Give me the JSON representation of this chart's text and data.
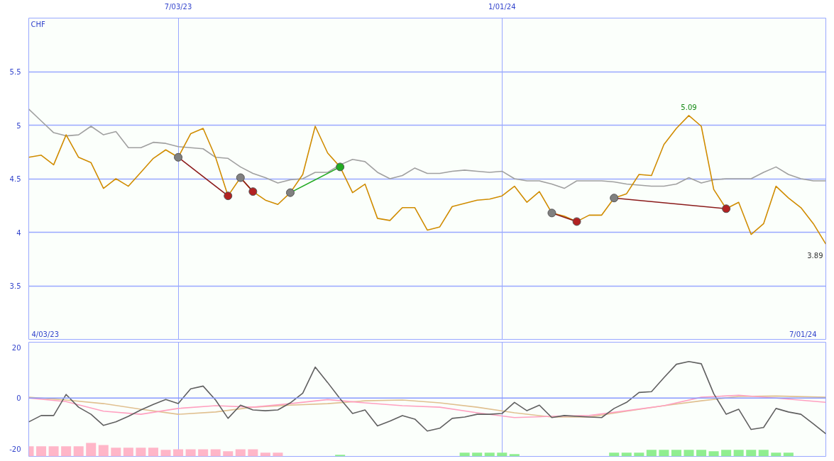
{
  "chart_data": [
    {
      "type": "line",
      "ylabel": "CHF",
      "x": [
        "2023-04-10",
        "2023-04-17",
        "2023-04-24",
        "2023-05-01",
        "2023-05-08",
        "2023-05-15",
        "2023-05-22",
        "2023-05-29",
        "2023-06-05",
        "2023-06-12",
        "2023-06-19",
        "2023-06-26",
        "2023-07-03",
        "2023-07-10",
        "2023-07-17",
        "2023-07-24",
        "2023-07-31",
        "2023-08-07",
        "2023-08-14",
        "2023-08-21",
        "2023-08-28",
        "2023-09-04",
        "2023-09-11",
        "2023-09-18",
        "2023-09-25",
        "2023-10-02",
        "2023-10-09",
        "2023-10-16",
        "2023-10-23",
        "2023-10-30",
        "2023-11-06",
        "2023-11-13",
        "2023-11-20",
        "2023-11-27",
        "2023-12-04",
        "2023-12-11",
        "2023-12-18",
        "2023-12-25",
        "2024-01-01",
        "2024-01-08",
        "2024-01-15",
        "2024-01-22",
        "2024-01-29",
        "2024-02-05",
        "2024-02-12",
        "2024-02-19",
        "2024-02-26",
        "2024-03-04",
        "2024-03-11",
        "2024-03-18",
        "2024-03-25",
        "2024-04-01",
        "2024-04-08",
        "2024-04-15",
        "2024-04-22",
        "2024-04-29",
        "2024-05-06",
        "2024-05-13",
        "2024-05-20",
        "2024-05-27",
        "2024-06-03",
        "2024-06-10",
        "2024-06-17",
        "2024-06-24",
        "2024-07-01"
      ],
      "xlim": [
        "2023-04-10",
        "2024-07-01"
      ],
      "xticks": [
        {
          "value": "2023-07-03",
          "label": "7/03/23"
        },
        {
          "value": "2024-01-01",
          "label": "1/01/24"
        }
      ],
      "ylim": [
        3,
        6
      ],
      "yticks": [
        3.5,
        4,
        4.5,
        5,
        5.5
      ],
      "grid": true,
      "series": [
        {
          "color": "#a0a0a0",
          "values": [
            5.15,
            5.04,
            4.93,
            4.9,
            4.91,
            4.99,
            4.91,
            4.94,
            4.79,
            4.79,
            4.84,
            4.83,
            4.8,
            4.79,
            4.78,
            4.7,
            4.69,
            4.61,
            4.55,
            4.51,
            4.46,
            4.49,
            4.5,
            4.56,
            4.56,
            4.63,
            4.68,
            4.66,
            4.56,
            4.5,
            4.53,
            4.6,
            4.55,
            4.55,
            4.57,
            4.58,
            4.57,
            4.56,
            4.57,
            4.5,
            4.48,
            4.48,
            4.45,
            4.41,
            4.48,
            4.48,
            4.48,
            4.47,
            4.45,
            4.44,
            4.43,
            4.43,
            4.45,
            4.51,
            4.46,
            4.49,
            4.5,
            4.5,
            4.5,
            4.56,
            4.61,
            4.54,
            4.5,
            4.48,
            4.48
          ]
        },
        {
          "color": "#d08c00",
          "values": [
            4.7,
            4.72,
            4.63,
            4.91,
            4.7,
            4.65,
            4.41,
            4.5,
            4.43,
            4.56,
            4.69,
            4.77,
            4.7,
            4.92,
            4.97,
            4.7,
            4.34,
            4.51,
            4.38,
            4.3,
            4.26,
            4.37,
            4.54,
            4.99,
            4.74,
            4.61,
            4.37,
            4.45,
            4.13,
            4.11,
            4.23,
            4.23,
            4.02,
            4.05,
            4.24,
            4.27,
            4.3,
            4.31,
            4.34,
            4.43,
            4.28,
            4.38,
            4.18,
            4.15,
            4.1,
            4.16,
            4.16,
            4.32,
            4.36,
            4.54,
            4.53,
            4.82,
            4.97,
            5.09,
            4.99,
            4.4,
            4.22,
            4.28,
            3.98,
            4.08,
            4.43,
            4.32,
            4.23,
            4.08,
            3.89
          ]
        },
        {
          "color": "#8b1a1a",
          "x": [
            "2023-07-03",
            "2023-07-31"
          ],
          "values": [
            4.7,
            4.34
          ]
        },
        {
          "color": "#8b1a1a",
          "x": [
            "2023-08-07",
            "2023-08-14"
          ],
          "values": [
            4.51,
            4.38
          ]
        },
        {
          "color": "#22aa22",
          "x": [
            "2023-09-04",
            "2023-10-02"
          ],
          "values": [
            4.37,
            4.61
          ]
        },
        {
          "color": "#8b1a1a",
          "x": [
            "2024-01-29",
            "2024-02-12"
          ],
          "values": [
            4.18,
            4.1
          ]
        },
        {
          "color": "#8b1a1a",
          "x": [
            "2024-03-04",
            "2024-05-06"
          ],
          "values": [
            4.32,
            4.22
          ]
        },
        {
          "type": "scatter",
          "marker": "circle",
          "color": "#808080",
          "x": [
            "2023-07-03",
            "2023-08-07",
            "2023-09-04",
            "2024-01-29",
            "2024-03-04"
          ],
          "values": [
            4.7,
            4.51,
            4.37,
            4.18,
            4.32
          ]
        },
        {
          "type": "scatter",
          "marker": "circle",
          "colors": [
            "#b22222",
            "#b22222",
            "#22aa22",
            "#b22222",
            "#b22222"
          ],
          "x": [
            "2023-07-31",
            "2023-08-14",
            "2023-10-02",
            "2024-02-12",
            "2024-05-06"
          ],
          "values": [
            4.34,
            4.38,
            4.61,
            4.1,
            4.22
          ]
        }
      ],
      "annotations": [
        "4/03/23",
        "7/01/24",
        {
          "text": "5.09",
          "x": "2024-04-15",
          "y": 5.09
        },
        {
          "text": "3.89",
          "x": "2024-07-01",
          "y": 3.89
        }
      ]
    },
    {
      "type": "line",
      "x": [
        "2023-04-10",
        "2023-04-17",
        "2023-04-24",
        "2023-05-01",
        "2023-05-08",
        "2023-05-15",
        "2023-05-22",
        "2023-05-29",
        "2023-06-05",
        "2023-06-12",
        "2023-06-19",
        "2023-06-26",
        "2023-07-03",
        "2023-07-10",
        "2023-07-17",
        "2023-07-24",
        "2023-07-31",
        "2023-08-07",
        "2023-08-14",
        "2023-08-21",
        "2023-08-28",
        "2023-09-04",
        "2023-09-11",
        "2023-09-18",
        "2023-09-25",
        "2023-10-02",
        "2023-10-09",
        "2023-10-16",
        "2023-10-23",
        "2023-10-30",
        "2023-11-06",
        "2023-11-13",
        "2023-11-20",
        "2023-11-27",
        "2023-12-04",
        "2023-12-11",
        "2023-12-18",
        "2023-12-25",
        "2024-01-01",
        "2024-01-08",
        "2024-01-15",
        "2024-01-22",
        "2024-01-29",
        "2024-02-05",
        "2024-02-12",
        "2024-02-19",
        "2024-02-26",
        "2024-03-04",
        "2024-03-11",
        "2024-03-18",
        "2024-03-25",
        "2024-04-01",
        "2024-04-08",
        "2024-04-15",
        "2024-04-22",
        "2024-04-29",
        "2024-05-06",
        "2024-05-13",
        "2024-05-20",
        "2024-05-27",
        "2024-06-03",
        "2024-06-10",
        "2024-06-17",
        "2024-06-24",
        "2024-07-01"
      ],
      "xlim": [
        "2023-04-10",
        "2024-07-01"
      ],
      "xticks": [
        {
          "value": "2023-07-03",
          "label": null
        },
        {
          "value": "2024-01-01",
          "label": null
        }
      ],
      "ylim": [
        -23,
        22
      ],
      "yticks": [
        20,
        0,
        -20
      ],
      "grid": "x",
      "tick_labels": "y",
      "ref_lines": [
        {
          "axis": "y",
          "value": 0,
          "color": "#8899ff"
        }
      ],
      "series": [
        {
          "type": "bar",
          "colors": [
            "#ffb6c8",
            "#ffb6c8",
            "#ffb6c8",
            "#ffb6c8",
            "#ffb6c8",
            "#ffb6c8",
            "#ffb6c8",
            "#ffb6c8",
            "#ffb6c8",
            "#ffb6c8",
            "#ffb6c8",
            "#ffb6c8",
            "#ffb6c8",
            "#ffb6c8",
            "#ffb6c8",
            "#ffb6c8",
            "#ffb6c8",
            "#ffb6c8",
            "#ffb6c8",
            "#ffb6c8",
            "#ffb6c8",
            "#ffb6c8",
            "#ffb6c8",
            "#ffb6c8",
            "#ffb6c8",
            "#90ee90",
            "#90ee90",
            "#90ee90",
            "#90ee90",
            "#90ee90",
            "#90ee90",
            "#90ee90",
            "#90ee90",
            "#90ee90",
            "#90ee90",
            "#90ee90",
            "#90ee90",
            "#90ee90",
            "#90ee90",
            "#90ee90",
            "#90ee90",
            "#90ee90",
            "#90ee90",
            "#90ee90",
            "#90ee90",
            "#90ee90",
            "#90ee90",
            "#90ee90",
            "#90ee90",
            "#90ee90",
            "#90ee90",
            "#90ee90",
            "#90ee90",
            "#90ee90",
            "#90ee90",
            "#90ee90",
            "#90ee90",
            "#90ee90",
            "#90ee90",
            "#90ee90",
            "#90ee90",
            "#90ee90",
            "#90ee90",
            "#90ee90",
            "#90ee90"
          ],
          "base": [
            -23,
            -23,
            -23,
            -23,
            -23,
            -23,
            -23,
            -23,
            -23,
            -23,
            -23,
            -23,
            -23,
            -23,
            -23,
            -23,
            -23,
            -23,
            -23,
            -23,
            -23,
            null,
            null,
            null,
            null,
            -23,
            null,
            null,
            null,
            null,
            null,
            null,
            null,
            null,
            null,
            -23,
            -23,
            -23,
            -23,
            -23,
            null,
            null,
            null,
            null,
            null,
            null,
            null,
            -23,
            -23,
            -23,
            -23,
            -23,
            -23,
            -23,
            -23,
            -23,
            -23,
            -23,
            -23,
            -23,
            -23,
            -23,
            null,
            null,
            null
          ],
          "values": [
            4.0,
            4.0,
            4.0,
            4.0,
            4.0,
            5.3,
            4.5,
            3.4,
            3.4,
            3.4,
            3.4,
            2.6,
            2.8,
            2.8,
            2.8,
            2.8,
            2.0,
            2.8,
            2.8,
            1.5,
            1.5,
            null,
            null,
            null,
            null,
            0.6,
            null,
            null,
            null,
            null,
            null,
            null,
            null,
            null,
            null,
            1.5,
            1.5,
            1.5,
            1.5,
            0.9,
            null,
            null,
            null,
            null,
            null,
            null,
            null,
            1.5,
            1.5,
            1.5,
            2.6,
            2.6,
            2.6,
            2.6,
            2.6,
            2.0,
            2.6,
            2.6,
            2.6,
            2.6,
            1.5,
            1.5,
            null,
            null,
            null
          ]
        },
        {
          "color": "#e0c090",
          "x": [
            "2023-04-10",
            "2023-05-01",
            "2023-05-22",
            "2023-06-12",
            "2023-07-03",
            "2023-07-24",
            "2023-08-14",
            "2023-09-04",
            "2023-09-25",
            "2023-10-16",
            "2023-11-06",
            "2023-11-27",
            "2023-12-18",
            "2024-01-08",
            "2024-01-29",
            "2024-02-19",
            "2024-03-11",
            "2024-04-01",
            "2024-04-22",
            "2024-05-13",
            "2024-06-03",
            "2024-07-01"
          ],
          "values": [
            0.3,
            -0.8,
            -2.2,
            -4.4,
            -6.4,
            -5.5,
            -3.6,
            -2.8,
            -2.2,
            -1.1,
            -0.8,
            -1.9,
            -3.6,
            -5.8,
            -7.5,
            -7.5,
            -5.2,
            -3.0,
            -1.1,
            0.6,
            0.8,
            0.3
          ]
        },
        {
          "color": "#ffa0c0",
          "x": [
            "2023-04-10",
            "2023-05-01",
            "2023-05-22",
            "2023-06-12",
            "2023-07-03",
            "2023-07-24",
            "2023-08-14",
            "2023-09-04",
            "2023-09-25",
            "2023-10-16",
            "2023-11-06",
            "2023-11-27",
            "2023-12-18",
            "2024-01-08",
            "2024-01-29",
            "2024-02-19",
            "2024-03-11",
            "2024-04-01",
            "2024-04-22",
            "2024-05-13",
            "2024-06-03",
            "2024-07-01"
          ],
          "values": [
            0,
            -1.4,
            -5.2,
            -6.4,
            -4.1,
            -3.0,
            -3.6,
            -2.2,
            -0.6,
            -1.9,
            -3.0,
            -3.6,
            -5.8,
            -7.7,
            -7.2,
            -6.9,
            -5.0,
            -3.0,
            0.3,
            1.1,
            0,
            -1.7
          ]
        },
        {
          "color": "#606060",
          "values": [
            -9.4,
            -6.9,
            -6.9,
            1.4,
            -3.6,
            -6.4,
            -10.8,
            -9.4,
            -7.2,
            -4.7,
            -2.5,
            -0.6,
            -2.2,
            3.6,
            4.7,
            -0.8,
            -8.0,
            -2.8,
            -4.7,
            -5.0,
            -4.7,
            -1.9,
            1.9,
            12.2,
            6.1,
            -0.3,
            -6.1,
            -4.7,
            -11.0,
            -9.1,
            -6.9,
            -8.3,
            -13.0,
            -11.9,
            -8.0,
            -7.5,
            -6.4,
            -6.4,
            -6.1,
            -1.7,
            -5.0,
            -2.8,
            -7.7,
            -6.9,
            -7.2,
            -7.5,
            -7.7,
            -4.1,
            -1.7,
            2.2,
            2.5,
            8.0,
            13.3,
            14.4,
            13.5,
            1.7,
            -6.4,
            -4.4,
            -12.4,
            -11.6,
            -4.1,
            -5.5,
            -6.4,
            -10.2,
            -14.1
          ]
        }
      ]
    }
  ]
}
